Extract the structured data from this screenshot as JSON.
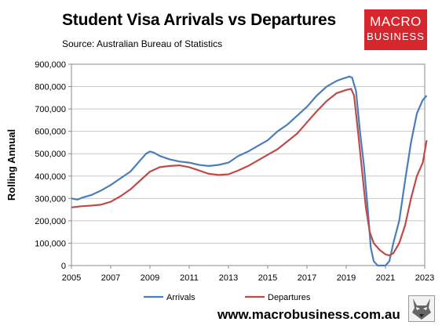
{
  "header": {
    "title": "Student Visa Arrivals vs Departures",
    "source": "Source: Australian Bureau of Statistics",
    "logo_line1": "MACRO",
    "logo_line2": "BUSINESS"
  },
  "footer": {
    "url": "www.macrobusiness.com.au",
    "mascot_icon": "wolf-head-icon"
  },
  "colors": {
    "arrivals": "#4a7ebb",
    "departures": "#be4b48",
    "brand_red": "#d7262e"
  },
  "chart_data": {
    "type": "line",
    "title": "Student Visa Arrivals vs Departures",
    "ylabel": "Rolling Annual",
    "xlabel": "",
    "xlim": [
      2005,
      2023
    ],
    "ylim": [
      0,
      900000
    ],
    "x_ticks": [
      2005,
      2007,
      2009,
      2011,
      2013,
      2015,
      2017,
      2019,
      2021,
      2023
    ],
    "y_ticks": [
      0,
      100000,
      200000,
      300000,
      400000,
      500000,
      600000,
      700000,
      800000,
      900000
    ],
    "y_tick_labels": [
      "0",
      "100,000",
      "200,000",
      "300,000",
      "400,000",
      "500,000",
      "600,000",
      "700,000",
      "800,000",
      "900,000"
    ],
    "grid": "horizontal",
    "legend_position": "bottom",
    "series": [
      {
        "name": "Arrivals",
        "color": "#4a7ebb",
        "x": [
          2005.0,
          2005.3,
          2005.6,
          2006.0,
          2006.5,
          2007.0,
          2007.5,
          2008.0,
          2008.5,
          2008.8,
          2009.0,
          2009.2,
          2009.5,
          2010.0,
          2010.5,
          2011.0,
          2011.5,
          2012.0,
          2012.5,
          2013.0,
          2013.5,
          2014.0,
          2014.5,
          2015.0,
          2015.5,
          2016.0,
          2016.5,
          2017.0,
          2017.5,
          2018.0,
          2018.5,
          2018.8,
          2019.0,
          2019.15,
          2019.3,
          2019.5,
          2019.7,
          2019.9,
          2020.1,
          2020.25,
          2020.4,
          2020.6,
          2020.8,
          2021.0,
          2021.2,
          2021.4,
          2021.7,
          2022.0,
          2022.3,
          2022.6,
          2022.9,
          2023.1
        ],
        "y": [
          300000,
          295000,
          305000,
          315000,
          335000,
          360000,
          390000,
          420000,
          470000,
          500000,
          510000,
          505000,
          490000,
          475000,
          465000,
          460000,
          450000,
          445000,
          450000,
          460000,
          490000,
          510000,
          535000,
          560000,
          600000,
          630000,
          670000,
          710000,
          760000,
          800000,
          825000,
          835000,
          840000,
          845000,
          840000,
          780000,
          600000,
          450000,
          250000,
          80000,
          20000,
          0,
          0,
          0,
          20000,
          100000,
          200000,
          380000,
          550000,
          680000,
          740000,
          760000
        ]
      },
      {
        "name": "Departures",
        "color": "#be4b48",
        "x": [
          2005.0,
          2005.5,
          2006.0,
          2006.5,
          2007.0,
          2007.5,
          2008.0,
          2008.5,
          2009.0,
          2009.5,
          2010.0,
          2010.5,
          2011.0,
          2011.5,
          2012.0,
          2012.5,
          2013.0,
          2013.5,
          2014.0,
          2014.5,
          2015.0,
          2015.5,
          2016.0,
          2016.5,
          2017.0,
          2017.5,
          2018.0,
          2018.5,
          2019.0,
          2019.25,
          2019.4,
          2019.6,
          2019.8,
          2020.0,
          2020.2,
          2020.4,
          2020.7,
          2021.0,
          2021.2,
          2021.4,
          2021.7,
          2022.0,
          2022.3,
          2022.6,
          2022.9,
          2023.1
        ],
        "y": [
          260000,
          265000,
          268000,
          272000,
          285000,
          310000,
          340000,
          380000,
          420000,
          440000,
          445000,
          448000,
          440000,
          425000,
          410000,
          405000,
          408000,
          425000,
          445000,
          470000,
          495000,
          520000,
          555000,
          590000,
          640000,
          690000,
          735000,
          770000,
          785000,
          790000,
          760000,
          600000,
          430000,
          260000,
          150000,
          100000,
          70000,
          50000,
          45000,
          55000,
          100000,
          180000,
          300000,
          400000,
          460000,
          560000
        ]
      }
    ]
  }
}
